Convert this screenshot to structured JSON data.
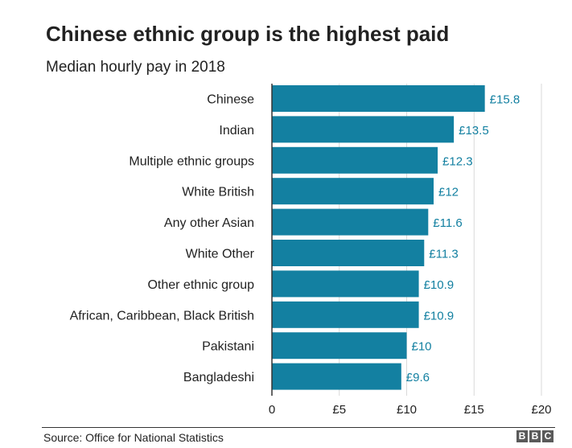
{
  "chart_data": {
    "type": "bar",
    "orientation": "horizontal",
    "title": "Chinese ethnic group is the highest paid",
    "subtitle": "Median hourly pay in 2018",
    "categories": [
      "Chinese",
      "Indian",
      "Multiple ethnic groups",
      "White British",
      "Any other Asian",
      "White Other",
      "Other ethnic group",
      "African, Caribbean, Black British",
      "Pakistani",
      "Bangladeshi"
    ],
    "values": [
      15.8,
      13.5,
      12.3,
      12,
      11.6,
      11.3,
      10.9,
      10.9,
      10,
      9.6
    ],
    "value_labels": [
      "£15.8",
      "£13.5",
      "£12.3",
      "£12",
      "£11.6",
      "£11.3",
      "£10.9",
      "£10.9",
      "£10",
      "£9.6"
    ],
    "xlim": [
      0,
      20
    ],
    "xticks": [
      0,
      5,
      10,
      15,
      20
    ],
    "xtick_labels": [
      "0",
      "£5",
      "£10",
      "£15",
      "£20"
    ],
    "xlabel": "",
    "ylabel": "",
    "grid": true,
    "legend": "none",
    "bar_color": "#1380A1",
    "label_color": "#1380A1",
    "grid_color": "#d9d9d9"
  },
  "footer": {
    "source": "Source: Office for National Statistics",
    "logo_letters": [
      "B",
      "B",
      "C"
    ]
  }
}
